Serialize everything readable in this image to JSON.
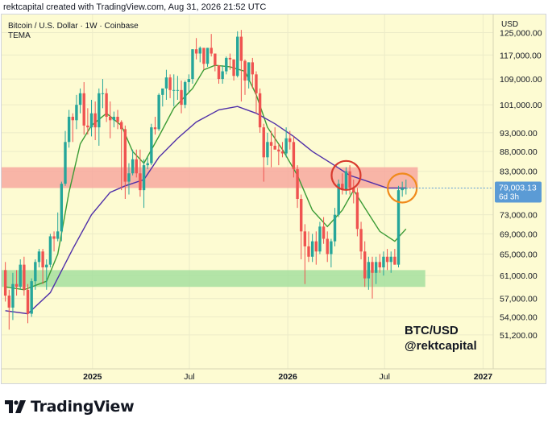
{
  "header": {
    "caption": "rektcapital created with TradingView.com, Aug 31, 2026 21:52 UTC"
  },
  "chart_data": {
    "type": "candlestick",
    "title": "Bitcoin / U.S. Dollar · 1W · Coinbase",
    "indicator_label": "TEMA",
    "currency": "USD",
    "axis_type": "log",
    "ylim": [
      48000,
      130000
    ],
    "y_ticks": [
      "125,000.00",
      "117,000.00",
      "109,000.00",
      "101,000.00",
      "93,000.00",
      "88,000.00",
      "83,000.00",
      "73,000.00",
      "69,000.00",
      "65,000.00",
      "61,000.00",
      "57,000.00",
      "54,000.00",
      "51,200.00"
    ],
    "y_tick_values": [
      125000,
      117000,
      109000,
      101000,
      93000,
      88000,
      83000,
      73000,
      69000,
      65000,
      61000,
      57000,
      54000,
      51200
    ],
    "x_ticks": [
      "2025",
      "Jul",
      "2026",
      "Jul",
      "2027"
    ],
    "x_tick_values": [
      "2025-01-01",
      "2025-07-01",
      "2026-01-01",
      "2026-07-01",
      "2027-01-01"
    ],
    "x_range": [
      "2024-07-15",
      "2027-01-20"
    ],
    "last_price": "79,003.13",
    "last_price_value": 79003.13,
    "countdown": "6d 3h",
    "last_price_color": "#5b9bd5",
    "zones": [
      {
        "name": "resistance",
        "low": 79000,
        "high": 84000,
        "from": "2024-07-15",
        "to": "2026-09-01",
        "color": "#f7a8a0"
      },
      {
        "name": "support",
        "low": 59000,
        "high": 62000,
        "from": "2024-07-15",
        "to": "2026-09-15",
        "color": "#a6dfa0"
      }
    ],
    "candles": [
      {
        "d": "2024-07-22",
        "o": 62000,
        "h": 63500,
        "l": 56500,
        "c": 57500
      },
      {
        "d": "2024-07-29",
        "o": 57500,
        "h": 58500,
        "l": 52000,
        "c": 55500
      },
      {
        "d": "2024-08-05",
        "o": 55500,
        "h": 61500,
        "l": 53500,
        "c": 59500
      },
      {
        "d": "2024-08-12",
        "o": 59500,
        "h": 62000,
        "l": 57500,
        "c": 59000
      },
      {
        "d": "2024-08-19",
        "o": 59000,
        "h": 64000,
        "l": 58500,
        "c": 63000
      },
      {
        "d": "2024-08-26",
        "o": 63000,
        "h": 64500,
        "l": 57500,
        "c": 58500
      },
      {
        "d": "2024-09-02",
        "o": 58500,
        "h": 59500,
        "l": 53000,
        "c": 54500
      },
      {
        "d": "2024-09-09",
        "o": 54500,
        "h": 60500,
        "l": 54000,
        "c": 60000
      },
      {
        "d": "2024-09-16",
        "o": 60000,
        "h": 64000,
        "l": 58500,
        "c": 63500
      },
      {
        "d": "2024-09-23",
        "o": 63500,
        "h": 66000,
        "l": 62500,
        "c": 65500
      },
      {
        "d": "2024-09-30",
        "o": 65500,
        "h": 66000,
        "l": 59500,
        "c": 62500
      },
      {
        "d": "2024-10-07",
        "o": 62500,
        "h": 64000,
        "l": 58500,
        "c": 63000
      },
      {
        "d": "2024-10-14",
        "o": 63000,
        "h": 69000,
        "l": 62500,
        "c": 68500
      },
      {
        "d": "2024-10-21",
        "o": 68500,
        "h": 69500,
        "l": 65500,
        "c": 68000
      },
      {
        "d": "2024-10-28",
        "o": 68000,
        "h": 73500,
        "l": 67500,
        "c": 69500
      },
      {
        "d": "2024-11-04",
        "o": 69500,
        "h": 80500,
        "l": 67500,
        "c": 80000
      },
      {
        "d": "2024-11-11",
        "o": 80000,
        "h": 93500,
        "l": 79500,
        "c": 90500
      },
      {
        "d": "2024-11-18",
        "o": 90500,
        "h": 99500,
        "l": 89000,
        "c": 97500
      },
      {
        "d": "2024-11-25",
        "o": 97500,
        "h": 98500,
        "l": 90500,
        "c": 96500
      },
      {
        "d": "2024-12-02",
        "o": 96500,
        "h": 104000,
        "l": 94000,
        "c": 101000
      },
      {
        "d": "2024-12-09",
        "o": 101000,
        "h": 106000,
        "l": 98500,
        "c": 104500
      },
      {
        "d": "2024-12-16",
        "o": 104500,
        "h": 108000,
        "l": 92500,
        "c": 95000
      },
      {
        "d": "2024-12-23",
        "o": 95000,
        "h": 100000,
        "l": 92500,
        "c": 94500
      },
      {
        "d": "2024-12-30",
        "o": 94500,
        "h": 102500,
        "l": 92000,
        "c": 98500
      },
      {
        "d": "2025-01-06",
        "o": 98500,
        "h": 102000,
        "l": 91000,
        "c": 94500
      },
      {
        "d": "2025-01-13",
        "o": 94500,
        "h": 106000,
        "l": 89500,
        "c": 104500
      },
      {
        "d": "2025-01-20",
        "o": 104500,
        "h": 109000,
        "l": 100000,
        "c": 104500
      },
      {
        "d": "2025-01-27",
        "o": 104500,
        "h": 106000,
        "l": 96000,
        "c": 97500
      },
      {
        "d": "2025-02-03",
        "o": 97500,
        "h": 102000,
        "l": 91500,
        "c": 96500
      },
      {
        "d": "2025-02-10",
        "o": 96500,
        "h": 99000,
        "l": 94500,
        "c": 97500
      },
      {
        "d": "2025-02-17",
        "o": 97500,
        "h": 99500,
        "l": 94000,
        "c": 96000
      },
      {
        "d": "2025-02-24",
        "o": 96000,
        "h": 96500,
        "l": 78500,
        "c": 94000
      },
      {
        "d": "2025-03-03",
        "o": 94000,
        "h": 95000,
        "l": 76500,
        "c": 80500
      },
      {
        "d": "2025-03-10",
        "o": 80500,
        "h": 85000,
        "l": 77500,
        "c": 82500
      },
      {
        "d": "2025-03-17",
        "o": 82500,
        "h": 88500,
        "l": 82000,
        "c": 86000
      },
      {
        "d": "2025-03-24",
        "o": 86000,
        "h": 88500,
        "l": 81500,
        "c": 82500
      },
      {
        "d": "2025-03-31",
        "o": 82500,
        "h": 88500,
        "l": 77000,
        "c": 78500
      },
      {
        "d": "2025-04-07",
        "o": 78500,
        "h": 86000,
        "l": 74500,
        "c": 84500
      },
      {
        "d": "2025-04-14",
        "o": 84500,
        "h": 86500,
        "l": 83500,
        "c": 85000
      },
      {
        "d": "2025-04-21",
        "o": 85000,
        "h": 95500,
        "l": 84500,
        "c": 94500
      },
      {
        "d": "2025-04-28",
        "o": 94500,
        "h": 97500,
        "l": 92500,
        "c": 94000
      },
      {
        "d": "2025-05-05",
        "o": 94000,
        "h": 104500,
        "l": 93500,
        "c": 104000
      },
      {
        "d": "2025-05-12",
        "o": 104000,
        "h": 105500,
        "l": 100500,
        "c": 106000
      },
      {
        "d": "2025-05-19",
        "o": 106000,
        "h": 112000,
        "l": 102500,
        "c": 109500
      },
      {
        "d": "2025-05-26",
        "o": 109500,
        "h": 110500,
        "l": 103000,
        "c": 105500
      },
      {
        "d": "2025-06-02",
        "o": 105500,
        "h": 110500,
        "l": 100500,
        "c": 105500
      },
      {
        "d": "2025-06-09",
        "o": 105500,
        "h": 110000,
        "l": 102500,
        "c": 105500
      },
      {
        "d": "2025-06-16",
        "o": 105500,
        "h": 108500,
        "l": 98500,
        "c": 101000
      },
      {
        "d": "2025-06-23",
        "o": 101000,
        "h": 108500,
        "l": 100000,
        "c": 108000
      },
      {
        "d": "2025-06-30",
        "o": 108000,
        "h": 110500,
        "l": 105000,
        "c": 109000
      },
      {
        "d": "2025-07-07",
        "o": 109000,
        "h": 119000,
        "l": 107500,
        "c": 119000
      },
      {
        "d": "2025-07-14",
        "o": 119000,
        "h": 123000,
        "l": 115500,
        "c": 117500
      },
      {
        "d": "2025-07-21",
        "o": 117500,
        "h": 120000,
        "l": 114500,
        "c": 119500
      },
      {
        "d": "2025-07-28",
        "o": 119500,
        "h": 119500,
        "l": 112000,
        "c": 114000
      },
      {
        "d": "2025-08-04",
        "o": 114000,
        "h": 119500,
        "l": 113000,
        "c": 119500
      },
      {
        "d": "2025-08-11",
        "o": 119500,
        "h": 124500,
        "l": 116500,
        "c": 117500
      },
      {
        "d": "2025-08-18",
        "o": 117500,
        "h": 117500,
        "l": 111500,
        "c": 113500
      },
      {
        "d": "2025-08-25",
        "o": 113500,
        "h": 113500,
        "l": 107500,
        "c": 109000
      },
      {
        "d": "2025-09-01",
        "o": 109000,
        "h": 113500,
        "l": 107500,
        "c": 111500
      },
      {
        "d": "2025-09-08",
        "o": 111500,
        "h": 116500,
        "l": 110500,
        "c": 116000
      },
      {
        "d": "2025-09-15",
        "o": 116000,
        "h": 117500,
        "l": 112000,
        "c": 115500
      },
      {
        "d": "2025-09-22",
        "o": 115500,
        "h": 115500,
        "l": 108500,
        "c": 110000
      },
      {
        "d": "2025-09-29",
        "o": 110000,
        "h": 125500,
        "l": 109500,
        "c": 123500
      },
      {
        "d": "2025-10-06",
        "o": 123500,
        "h": 126000,
        "l": 102000,
        "c": 115000
      },
      {
        "d": "2025-10-13",
        "o": 115000,
        "h": 115500,
        "l": 104000,
        "c": 108500
      },
      {
        "d": "2025-10-20",
        "o": 108500,
        "h": 114500,
        "l": 106000,
        "c": 114500
      },
      {
        "d": "2025-10-27",
        "o": 114500,
        "h": 116000,
        "l": 106000,
        "c": 110500
      },
      {
        "d": "2025-11-03",
        "o": 110500,
        "h": 111500,
        "l": 98500,
        "c": 104500
      },
      {
        "d": "2025-11-10",
        "o": 104500,
        "h": 106000,
        "l": 93000,
        "c": 94500
      },
      {
        "d": "2025-11-17",
        "o": 94500,
        "h": 95500,
        "l": 80500,
        "c": 86500
      },
      {
        "d": "2025-11-24",
        "o": 86500,
        "h": 93000,
        "l": 84500,
        "c": 90500
      },
      {
        "d": "2025-12-01",
        "o": 90500,
        "h": 93500,
        "l": 84000,
        "c": 89500
      },
      {
        "d": "2025-12-08",
        "o": 89500,
        "h": 94500,
        "l": 88500,
        "c": 88500
      },
      {
        "d": "2025-12-15",
        "o": 88500,
        "h": 90000,
        "l": 84500,
        "c": 88000
      },
      {
        "d": "2025-12-22",
        "o": 88000,
        "h": 90500,
        "l": 86500,
        "c": 87500
      },
      {
        "d": "2025-12-29",
        "o": 87500,
        "h": 94500,
        "l": 86500,
        "c": 91500
      },
      {
        "d": "2026-01-05",
        "o": 91500,
        "h": 93500,
        "l": 88500,
        "c": 90500
      },
      {
        "d": "2026-01-12",
        "o": 90500,
        "h": 92000,
        "l": 81500,
        "c": 83500
      },
      {
        "d": "2026-01-19",
        "o": 83500,
        "h": 84500,
        "l": 74500,
        "c": 76500
      },
      {
        "d": "2026-01-26",
        "o": 76500,
        "h": 77500,
        "l": 64000,
        "c": 69500
      },
      {
        "d": "2026-02-02",
        "o": 69500,
        "h": 71000,
        "l": 59500,
        "c": 66500
      },
      {
        "d": "2026-02-09",
        "o": 66500,
        "h": 69500,
        "l": 63500,
        "c": 64500
      },
      {
        "d": "2026-02-16",
        "o": 64500,
        "h": 69000,
        "l": 63500,
        "c": 67500
      },
      {
        "d": "2026-02-23",
        "o": 67500,
        "h": 69500,
        "l": 63000,
        "c": 65500
      },
      {
        "d": "2026-03-02",
        "o": 65500,
        "h": 71500,
        "l": 65000,
        "c": 70500
      },
      {
        "d": "2026-03-09",
        "o": 70500,
        "h": 72500,
        "l": 67000,
        "c": 68000
      },
      {
        "d": "2026-03-16",
        "o": 68000,
        "h": 69500,
        "l": 63500,
        "c": 65000
      },
      {
        "d": "2026-03-23",
        "o": 65000,
        "h": 68000,
        "l": 62500,
        "c": 67500
      },
      {
        "d": "2026-03-30",
        "o": 67500,
        "h": 74500,
        "l": 66500,
        "c": 73000
      },
      {
        "d": "2026-04-06",
        "o": 73000,
        "h": 81000,
        "l": 72500,
        "c": 80000
      },
      {
        "d": "2026-04-13",
        "o": 80000,
        "h": 82500,
        "l": 77500,
        "c": 78500
      },
      {
        "d": "2026-04-20",
        "o": 78500,
        "h": 84000,
        "l": 77500,
        "c": 83000
      },
      {
        "d": "2026-04-27",
        "o": 83000,
        "h": 84500,
        "l": 77500,
        "c": 79000
      },
      {
        "d": "2026-05-04",
        "o": 79000,
        "h": 81000,
        "l": 75500,
        "c": 78000
      },
      {
        "d": "2026-05-11",
        "o": 78000,
        "h": 79000,
        "l": 68500,
        "c": 70000
      },
      {
        "d": "2026-05-18",
        "o": 70000,
        "h": 71500,
        "l": 64000,
        "c": 65500
      },
      {
        "d": "2026-05-25",
        "o": 65500,
        "h": 67500,
        "l": 59000,
        "c": 60500
      },
      {
        "d": "2026-06-01",
        "o": 60500,
        "h": 64500,
        "l": 58500,
        "c": 63500
      },
      {
        "d": "2026-06-08",
        "o": 63500,
        "h": 64500,
        "l": 57000,
        "c": 61500
      },
      {
        "d": "2026-06-15",
        "o": 61500,
        "h": 64500,
        "l": 59500,
        "c": 63500
      },
      {
        "d": "2026-06-22",
        "o": 63500,
        "h": 65000,
        "l": 61500,
        "c": 62500
      },
      {
        "d": "2026-06-29",
        "o": 62500,
        "h": 65500,
        "l": 61000,
        "c": 64500
      },
      {
        "d": "2026-07-06",
        "o": 64500,
        "h": 66000,
        "l": 62000,
        "c": 63500
      },
      {
        "d": "2026-07-13",
        "o": 63500,
        "h": 65500,
        "l": 61500,
        "c": 64500
      },
      {
        "d": "2026-07-20",
        "o": 64500,
        "h": 66000,
        "l": 63000,
        "c": 63000
      },
      {
        "d": "2026-07-27",
        "o": 63000,
        "h": 79500,
        "l": 62500,
        "c": 78500
      },
      {
        "d": "2026-08-03",
        "o": 78500,
        "h": 80500,
        "l": 77000,
        "c": 79000
      },
      {
        "d": "2026-08-10",
        "o": 79000,
        "h": 81000,
        "l": 77500,
        "c": 79003
      }
    ],
    "series": [
      {
        "name": "TEMA",
        "color": "#3b9b35",
        "points": [
          [
            "2024-07-22",
            59000
          ],
          [
            "2024-08-26",
            58500
          ],
          [
            "2024-10-07",
            60000
          ],
          [
            "2024-10-28",
            65000
          ],
          [
            "2024-11-18",
            78000
          ],
          [
            "2024-12-09",
            90000
          ],
          [
            "2024-12-30",
            95000
          ],
          [
            "2025-01-27",
            98500
          ],
          [
            "2025-02-24",
            95000
          ],
          [
            "2025-03-17",
            88000
          ],
          [
            "2025-04-07",
            85000
          ],
          [
            "2025-05-05",
            92000
          ],
          [
            "2025-06-02",
            100000
          ],
          [
            "2025-07-07",
            106000
          ],
          [
            "2025-07-28",
            112000
          ],
          [
            "2025-08-18",
            113500
          ],
          [
            "2025-09-15",
            113000
          ],
          [
            "2025-10-13",
            111500
          ],
          [
            "2025-11-03",
            104000
          ],
          [
            "2025-11-24",
            94500
          ],
          [
            "2025-12-22",
            88500
          ],
          [
            "2026-01-19",
            82000
          ],
          [
            "2026-02-16",
            74000
          ],
          [
            "2026-03-16",
            70500
          ],
          [
            "2026-04-13",
            74000
          ],
          [
            "2026-05-04",
            78500
          ],
          [
            "2026-05-25",
            74500
          ],
          [
            "2026-06-22",
            69500
          ],
          [
            "2026-07-20",
            67500
          ],
          [
            "2026-08-10",
            70000
          ]
        ]
      },
      {
        "name": "TEMA",
        "color": "#4f2fa8",
        "points": [
          [
            "2024-07-22",
            55000
          ],
          [
            "2024-09-02",
            54500
          ],
          [
            "2024-10-14",
            58000
          ],
          [
            "2024-11-25",
            66000
          ],
          [
            "2024-12-30",
            73000
          ],
          [
            "2025-02-03",
            78000
          ],
          [
            "2025-03-03",
            79500
          ],
          [
            "2025-04-07",
            81000
          ],
          [
            "2025-05-05",
            86500
          ],
          [
            "2025-06-09",
            91500
          ],
          [
            "2025-07-14",
            96000
          ],
          [
            "2025-08-25",
            99500
          ],
          [
            "2025-09-29",
            100500
          ],
          [
            "2025-11-03",
            98500
          ],
          [
            "2025-12-08",
            95500
          ],
          [
            "2026-01-12",
            92000
          ],
          [
            "2026-02-16",
            88000
          ],
          [
            "2026-03-23",
            85000
          ],
          [
            "2026-04-27",
            82000
          ],
          [
            "2026-06-01",
            80500
          ],
          [
            "2026-07-06",
            79000
          ],
          [
            "2026-08-10",
            79000
          ]
        ]
      }
    ],
    "annotations": [
      {
        "type": "circle",
        "date": "2026-04-20",
        "price": 82000,
        "color": "#d83a2e"
      },
      {
        "type": "circle",
        "date": "2026-08-03",
        "price": 79000,
        "color": "#f08a1c"
      }
    ],
    "watermark_pair": "BTC/USD",
    "watermark_handle": "@rektcapital",
    "colors": {
      "up": "#26a69a",
      "down": "#ef5350",
      "background": "#fdfbd2",
      "grid": "#ecebc8"
    }
  },
  "footer": {
    "brand": "TradingView"
  }
}
